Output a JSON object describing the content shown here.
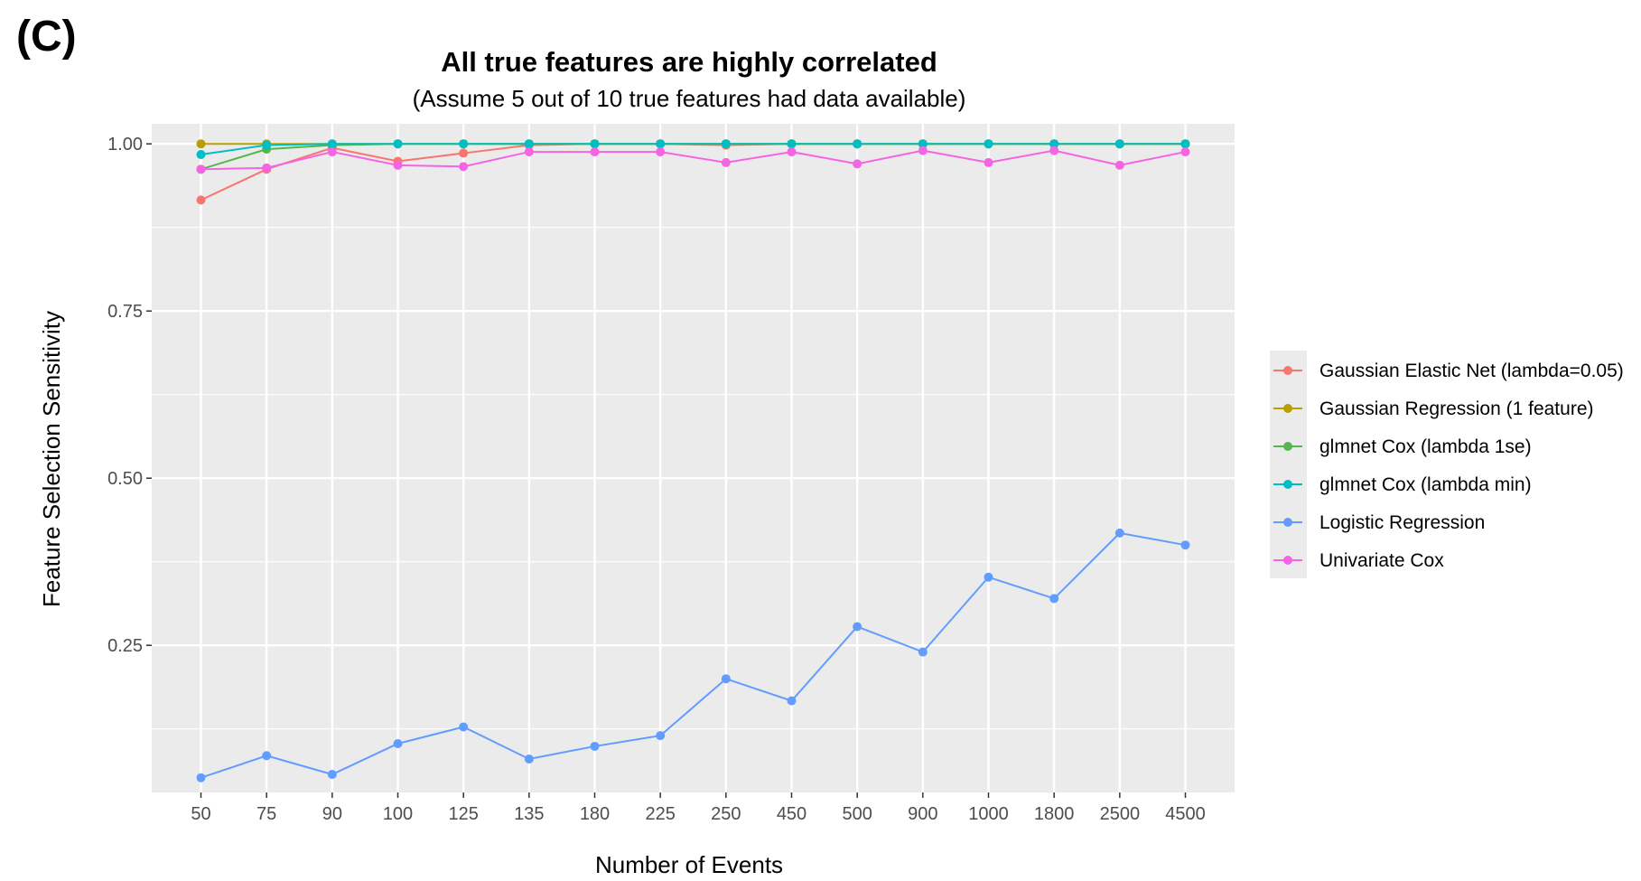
{
  "panel_label": "(C)",
  "chart_data": {
    "type": "line",
    "title": "All true features are highly correlated",
    "subtitle": "(Assume 5 out of 10 true features had data available)",
    "xlabel": "Number of Events",
    "ylabel": "Feature Selection Sensitivity",
    "categories": [
      "50",
      "75",
      "90",
      "100",
      "125",
      "135",
      "180",
      "225",
      "250",
      "450",
      "500",
      "900",
      "1000",
      "1800",
      "2500",
      "4500"
    ],
    "yticks": [
      0.25,
      0.5,
      0.75,
      1.0
    ],
    "ytick_labels": [
      "0.25",
      "0.50",
      "0.75",
      "1.00"
    ],
    "ylim": [
      0.03,
      1.03
    ],
    "grid": true,
    "legend_position": "right",
    "series": [
      {
        "name": "Gaussian Elastic Net (lambda=0.05)",
        "color": "#F8766D",
        "values": [
          0.916,
          0.962,
          0.994,
          0.974,
          0.986,
          0.998,
          1.0,
          1.0,
          0.998,
          1.0,
          1.0,
          1.0,
          1.0,
          1.0,
          1.0,
          1.0
        ]
      },
      {
        "name": "Gaussian Regression (1 feature)",
        "color": "#B79F00",
        "values": [
          1.0,
          1.0,
          1.0,
          1.0,
          1.0,
          1.0,
          1.0,
          1.0,
          1.0,
          1.0,
          1.0,
          1.0,
          1.0,
          1.0,
          1.0,
          1.0
        ]
      },
      {
        "name": "glmnet Cox (lambda 1se)",
        "color": "#53B74C",
        "values": [
          0.962,
          0.992,
          0.998,
          1.0,
          1.0,
          1.0,
          1.0,
          1.0,
          1.0,
          1.0,
          1.0,
          1.0,
          1.0,
          1.0,
          1.0,
          1.0
        ]
      },
      {
        "name": "glmnet Cox (lambda min)",
        "color": "#00BFC4",
        "values": [
          0.984,
          0.998,
          1.0,
          1.0,
          1.0,
          1.0,
          1.0,
          1.0,
          1.0,
          1.0,
          1.0,
          1.0,
          1.0,
          1.0,
          1.0,
          1.0
        ]
      },
      {
        "name": "Logistic Regression",
        "color": "#619CFF",
        "values": [
          0.052,
          0.085,
          0.057,
          0.103,
          0.128,
          0.08,
          0.099,
          0.115,
          0.2,
          0.167,
          0.278,
          0.24,
          0.352,
          0.32,
          0.418,
          0.4
        ]
      },
      {
        "name": "Univariate Cox",
        "color": "#F564E3",
        "values": [
          0.962,
          0.964,
          0.988,
          0.968,
          0.966,
          0.988,
          0.988,
          0.988,
          0.972,
          0.988,
          0.97,
          0.99,
          0.972,
          0.99,
          0.968,
          0.988
        ]
      }
    ]
  }
}
